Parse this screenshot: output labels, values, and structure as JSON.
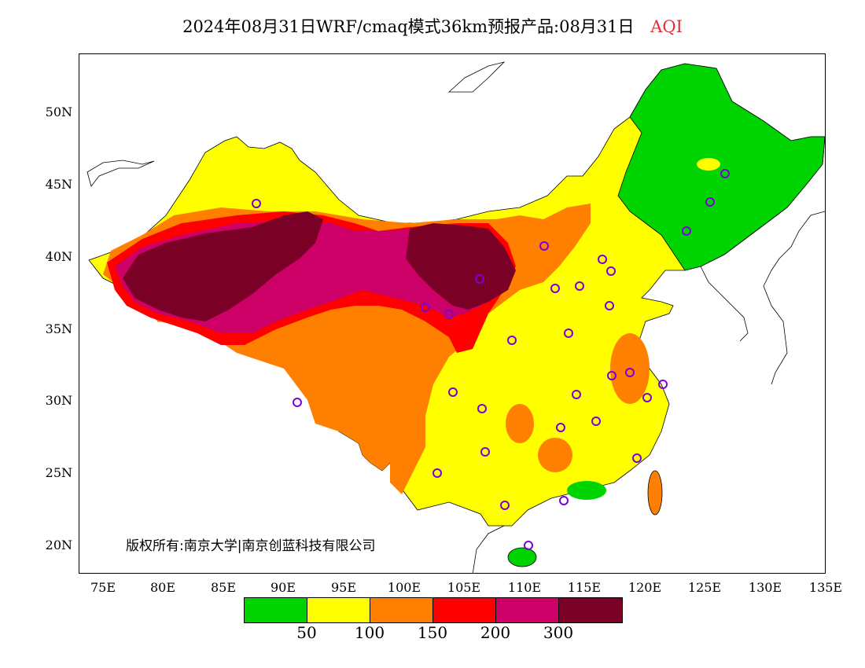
{
  "title": {
    "main": "2024年08月31日WRF/cmaq模式36km预报产品:08月31日",
    "variable": "AQI",
    "variable_color": "#e0303a"
  },
  "axes": {
    "lat_labels": [
      "50N",
      "45N",
      "40N",
      "35N",
      "30N",
      "25N",
      "20N"
    ],
    "lon_labels": [
      "75E",
      "80E",
      "85E",
      "90E",
      "95E",
      "100E",
      "105E",
      "110E",
      "115E",
      "120E",
      "125E",
      "130E",
      "135E"
    ]
  },
  "copyright": "版权所有:南京大学|南京创蓝科技有限公司",
  "legend": {
    "colors": [
      "#00d400",
      "#ffff00",
      "#ff7f00",
      "#ff0000",
      "#cc0066",
      "#7a0026"
    ],
    "tick_labels": [
      "50",
      "100",
      "150",
      "200",
      "300"
    ]
  },
  "map": {
    "projection": "lat-lon",
    "lon_range": [
      73,
      135
    ],
    "lat_range": [
      18,
      54
    ]
  }
}
